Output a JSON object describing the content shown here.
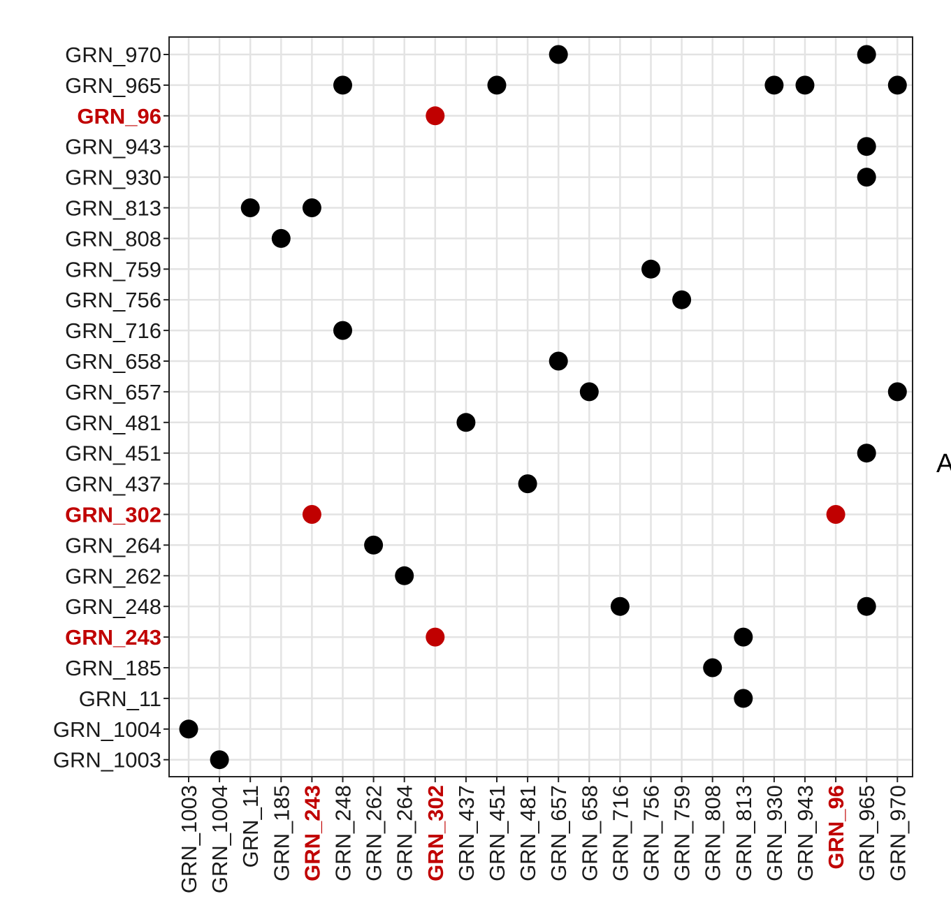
{
  "chart_data": {
    "type": "scatter",
    "title": "",
    "xlabel": "",
    "ylabel": "",
    "grid": true,
    "legend": "none",
    "highlight_color": "#c00000",
    "point_color": "#000000",
    "grid_color": "#e3e3e3",
    "x_categories": [
      "GRN_1003",
      "GRN_1004",
      "GRN_11",
      "GRN_185",
      "GRN_243",
      "GRN_248",
      "GRN_262",
      "GRN_264",
      "GRN_302",
      "GRN_437",
      "GRN_451",
      "GRN_481",
      "GRN_657",
      "GRN_658",
      "GRN_716",
      "GRN_756",
      "GRN_759",
      "GRN_808",
      "GRN_813",
      "GRN_930",
      "GRN_943",
      "GRN_96",
      "GRN_965",
      "GRN_970"
    ],
    "y_categories": [
      "GRN_1003",
      "GRN_1004",
      "GRN_11",
      "GRN_185",
      "GRN_243",
      "GRN_248",
      "GRN_262",
      "GRN_264",
      "GRN_302",
      "GRN_437",
      "GRN_451",
      "GRN_481",
      "GRN_657",
      "GRN_658",
      "GRN_716",
      "GRN_756",
      "GRN_759",
      "GRN_808",
      "GRN_813",
      "GRN_930",
      "GRN_943",
      "GRN_96",
      "GRN_965",
      "GRN_970"
    ],
    "highlighted_labels": [
      "GRN_243",
      "GRN_302",
      "GRN_96"
    ],
    "points": [
      {
        "x": "GRN_657",
        "y": "GRN_970",
        "highlight": false
      },
      {
        "x": "GRN_965",
        "y": "GRN_970",
        "highlight": false
      },
      {
        "x": "GRN_248",
        "y": "GRN_965",
        "highlight": false
      },
      {
        "x": "GRN_451",
        "y": "GRN_965",
        "highlight": false
      },
      {
        "x": "GRN_930",
        "y": "GRN_965",
        "highlight": false
      },
      {
        "x": "GRN_943",
        "y": "GRN_965",
        "highlight": false
      },
      {
        "x": "GRN_970",
        "y": "GRN_965",
        "highlight": false
      },
      {
        "x": "GRN_302",
        "y": "GRN_96",
        "highlight": true
      },
      {
        "x": "GRN_965",
        "y": "GRN_943",
        "highlight": false
      },
      {
        "x": "GRN_965",
        "y": "GRN_930",
        "highlight": false
      },
      {
        "x": "GRN_11",
        "y": "GRN_813",
        "highlight": false
      },
      {
        "x": "GRN_243",
        "y": "GRN_813",
        "highlight": false
      },
      {
        "x": "GRN_185",
        "y": "GRN_808",
        "highlight": false
      },
      {
        "x": "GRN_756",
        "y": "GRN_759",
        "highlight": false
      },
      {
        "x": "GRN_759",
        "y": "GRN_756",
        "highlight": false
      },
      {
        "x": "GRN_248",
        "y": "GRN_716",
        "highlight": false
      },
      {
        "x": "GRN_657",
        "y": "GRN_658",
        "highlight": false
      },
      {
        "x": "GRN_658",
        "y": "GRN_657",
        "highlight": false
      },
      {
        "x": "GRN_970",
        "y": "GRN_657",
        "highlight": false
      },
      {
        "x": "GRN_437",
        "y": "GRN_481",
        "highlight": false
      },
      {
        "x": "GRN_965",
        "y": "GRN_451",
        "highlight": false
      },
      {
        "x": "GRN_481",
        "y": "GRN_437",
        "highlight": false
      },
      {
        "x": "GRN_243",
        "y": "GRN_302",
        "highlight": true
      },
      {
        "x": "GRN_96",
        "y": "GRN_302",
        "highlight": true
      },
      {
        "x": "GRN_262",
        "y": "GRN_264",
        "highlight": false
      },
      {
        "x": "GRN_264",
        "y": "GRN_262",
        "highlight": false
      },
      {
        "x": "GRN_716",
        "y": "GRN_248",
        "highlight": false
      },
      {
        "x": "GRN_965",
        "y": "GRN_248",
        "highlight": false
      },
      {
        "x": "GRN_302",
        "y": "GRN_243",
        "highlight": true
      },
      {
        "x": "GRN_813",
        "y": "GRN_243",
        "highlight": false
      },
      {
        "x": "GRN_808",
        "y": "GRN_185",
        "highlight": false
      },
      {
        "x": "GRN_813",
        "y": "GRN_11",
        "highlight": false
      },
      {
        "x": "GRN_1003",
        "y": "GRN_1004",
        "highlight": false
      },
      {
        "x": "GRN_1004",
        "y": "GRN_1003",
        "highlight": false
      }
    ]
  },
  "edge_letter": "A"
}
